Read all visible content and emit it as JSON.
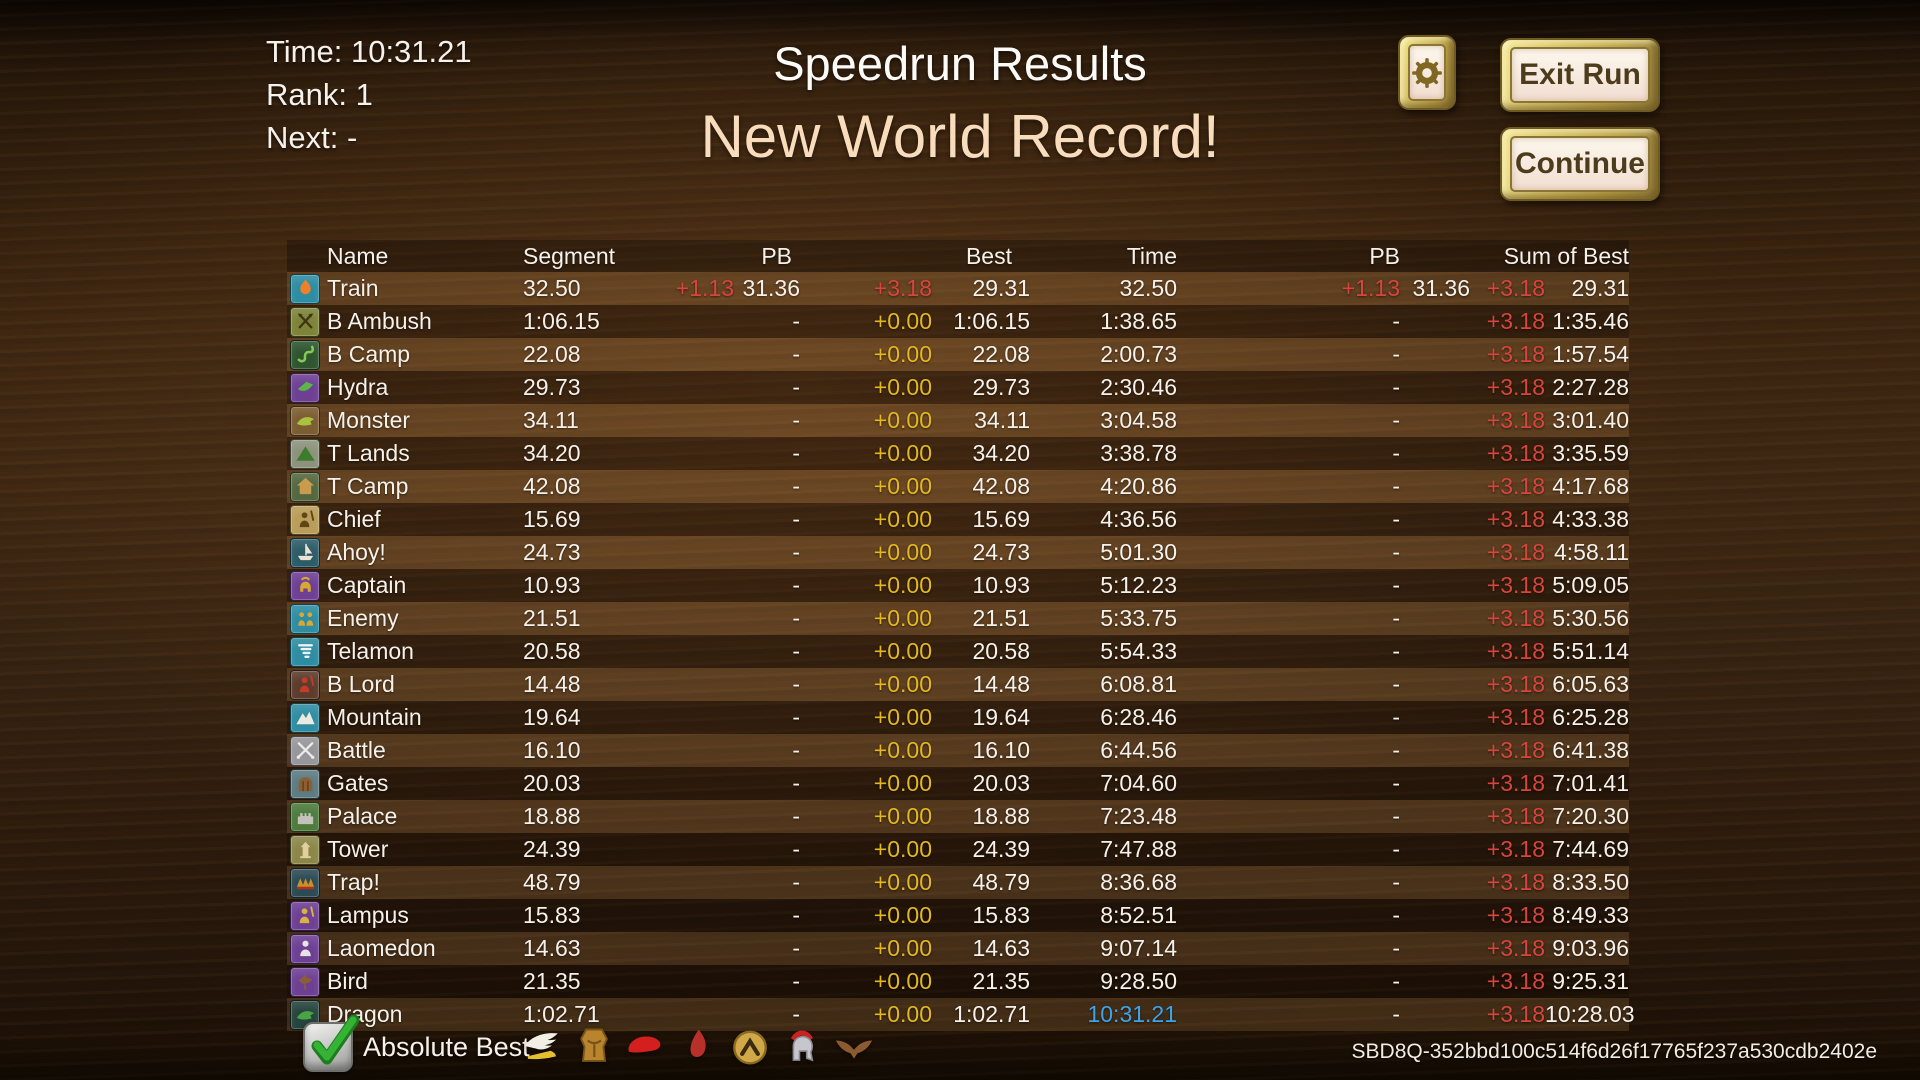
{
  "hud": {
    "time": "Time: 10:31.21",
    "rank": "Rank: 1",
    "next": "Next: -"
  },
  "header": {
    "title": "Speedrun Results",
    "subtitle": "New World Record!"
  },
  "buttons": {
    "settings_icon": "gear-icon",
    "exit_run": "Exit Run",
    "continue": "Continue"
  },
  "colors": {
    "delta_red": "#d8453c",
    "delta_gold": "#e3b81e",
    "time_blue": "#3da4ea",
    "record_cream": "#f8dcbc"
  },
  "table": {
    "columns": [
      "Name",
      "Segment",
      "PB",
      "Best",
      "Time",
      "PB",
      "Sum of Best"
    ],
    "rows": [
      {
        "icon": "train-icon",
        "glyph": "flame",
        "icon_bg": "#2e8da2",
        "glyph_color": "#ef7f28",
        "name": "Train",
        "segment": "32.50",
        "pb_delta": "+1.13",
        "pb_value": "31.36",
        "best_delta": "+3.18",
        "best_value": "29.31",
        "time": "32.50",
        "pb2_delta": "+1.13",
        "pb2_value": "31.36",
        "sob_delta": "+3.18",
        "sob_value": "29.31"
      },
      {
        "icon": "crossed-axes-icon",
        "glyph": "axes",
        "icon_bg": "#7d8438",
        "glyph_color": "#3f3414",
        "name": "B Ambush",
        "segment": "1:06.15",
        "pb_delta": "",
        "pb_value": "-",
        "best_delta": "+0.00",
        "best_value": "1:06.15",
        "time": "1:38.65",
        "pb2_delta": "-",
        "pb2_value": "",
        "sob_delta": "+3.18",
        "sob_value": "1:35.46"
      },
      {
        "icon": "snake-icon",
        "glyph": "snake",
        "icon_bg": "#2e5530",
        "glyph_color": "#86c956",
        "name": "B Camp",
        "segment": "22.08",
        "pb_delta": "",
        "pb_value": "-",
        "best_delta": "+0.00",
        "best_value": "22.08",
        "time": "2:00.73",
        "pb2_delta": "-",
        "pb2_value": "",
        "sob_delta": "+3.18",
        "sob_value": "1:57.54"
      },
      {
        "icon": "hydra-icon",
        "glyph": "serpent",
        "icon_bg": "#6e4094",
        "glyph_color": "#5cb44a",
        "name": "Hydra",
        "segment": "29.73",
        "pb_delta": "",
        "pb_value": "-",
        "best_delta": "+0.00",
        "best_value": "29.73",
        "time": "2:30.46",
        "pb2_delta": "-",
        "pb2_value": "",
        "sob_delta": "+3.18",
        "sob_value": "2:27.28"
      },
      {
        "icon": "monster-icon",
        "glyph": "dragon",
        "icon_bg": "#7c5c31",
        "glyph_color": "#aac23e",
        "name": "Monster",
        "segment": "34.11",
        "pb_delta": "",
        "pb_value": "-",
        "best_delta": "+0.00",
        "best_value": "34.11",
        "time": "3:04.58",
        "pb2_delta": "-",
        "pb2_value": "",
        "sob_delta": "+3.18",
        "sob_value": "3:01.40"
      },
      {
        "icon": "hill-icon",
        "glyph": "hill",
        "icon_bg": "#8d927c",
        "glyph_color": "#3c7c2c",
        "name": "T Lands",
        "segment": "34.20",
        "pb_delta": "",
        "pb_value": "-",
        "best_delta": "+0.00",
        "best_value": "34.20",
        "time": "3:38.78",
        "pb2_delta": "-",
        "pb2_value": "",
        "sob_delta": "+3.18",
        "sob_value": "3:35.59"
      },
      {
        "icon": "hut-icon",
        "glyph": "hut",
        "icon_bg": "#53683f",
        "glyph_color": "#c99b4e",
        "name": "T Camp",
        "segment": "42.08",
        "pb_delta": "",
        "pb_value": "-",
        "best_delta": "+0.00",
        "best_value": "42.08",
        "time": "4:20.86",
        "pb2_delta": "-",
        "pb2_value": "",
        "sob_delta": "+3.18",
        "sob_value": "4:17.68"
      },
      {
        "icon": "chief-icon",
        "glyph": "warrior",
        "icon_bg": "#b99d58",
        "glyph_color": "#5f4517",
        "name": "Chief",
        "segment": "15.69",
        "pb_delta": "",
        "pb_value": "-",
        "best_delta": "+0.00",
        "best_value": "15.69",
        "time": "4:36.56",
        "pb2_delta": "-",
        "pb2_value": "",
        "sob_delta": "+3.18",
        "sob_value": "4:33.38"
      },
      {
        "icon": "ship-icon",
        "glyph": "ship",
        "icon_bg": "#2c5c68",
        "glyph_color": "#ece4d2",
        "name": "Ahoy!",
        "segment": "24.73",
        "pb_delta": "",
        "pb_value": "-",
        "best_delta": "+0.00",
        "best_value": "24.73",
        "time": "5:01.30",
        "pb2_delta": "-",
        "pb2_value": "",
        "sob_delta": "+3.18",
        "sob_value": "4:58.11"
      },
      {
        "icon": "captain-helmet-icon",
        "glyph": "helmet",
        "icon_bg": "#6e4094",
        "glyph_color": "#d9a832",
        "name": "Captain",
        "segment": "10.93",
        "pb_delta": "",
        "pb_value": "-",
        "best_delta": "+0.00",
        "best_value": "10.93",
        "time": "5:12.23",
        "pb2_delta": "-",
        "pb2_value": "",
        "sob_delta": "+3.18",
        "sob_value": "5:09.05"
      },
      {
        "icon": "enemy-soldiers-icon",
        "glyph": "twopersons",
        "icon_bg": "#2e8da2",
        "glyph_color": "#d9a832",
        "name": "Enemy",
        "segment": "21.51",
        "pb_delta": "",
        "pb_value": "-",
        "best_delta": "+0.00",
        "best_value": "21.51",
        "time": "5:33.75",
        "pb2_delta": "-",
        "pb2_value": "",
        "sob_delta": "+3.18",
        "sob_value": "5:30.56"
      },
      {
        "icon": "whirlwind-icon",
        "glyph": "tornado",
        "icon_bg": "#2e8da2",
        "glyph_color": "#eef2f2",
        "name": "Telamon",
        "segment": "20.58",
        "pb_delta": "",
        "pb_value": "-",
        "best_delta": "+0.00",
        "best_value": "20.58",
        "time": "5:54.33",
        "pb2_delta": "-",
        "pb2_value": "",
        "sob_delta": "+3.18",
        "sob_value": "5:51.14"
      },
      {
        "icon": "boss-lord-icon",
        "glyph": "warrior",
        "icon_bg": "#5c3c2c",
        "glyph_color": "#c43b28",
        "name": "B Lord",
        "segment": "14.48",
        "pb_delta": "",
        "pb_value": "-",
        "best_delta": "+0.00",
        "best_value": "14.48",
        "time": "6:08.81",
        "pb2_delta": "-",
        "pb2_value": "",
        "sob_delta": "+3.18",
        "sob_value": "6:05.63"
      },
      {
        "icon": "mountain-icon",
        "glyph": "mountain",
        "icon_bg": "#2e8da2",
        "glyph_color": "#ece9e0",
        "name": "Mountain",
        "segment": "19.64",
        "pb_delta": "",
        "pb_value": "-",
        "best_delta": "+0.00",
        "best_value": "19.64",
        "time": "6:28.46",
        "pb2_delta": "-",
        "pb2_value": "",
        "sob_delta": "+3.18",
        "sob_value": "6:25.28"
      },
      {
        "icon": "crossed-swords-icon",
        "glyph": "swords",
        "icon_bg": "#97979b",
        "glyph_color": "#ecece8",
        "name": "Battle",
        "segment": "16.10",
        "pb_delta": "",
        "pb_value": "-",
        "best_delta": "+0.00",
        "best_value": "16.10",
        "time": "6:44.56",
        "pb2_delta": "-",
        "pb2_value": "",
        "sob_delta": "+3.18",
        "sob_value": "6:41.38"
      },
      {
        "icon": "gate-icon",
        "glyph": "gate",
        "icon_bg": "#5d7b82",
        "glyph_color": "#8c5e30",
        "name": "Gates",
        "segment": "20.03",
        "pb_delta": "",
        "pb_value": "-",
        "best_delta": "+0.00",
        "best_value": "20.03",
        "time": "7:04.60",
        "pb2_delta": "-",
        "pb2_value": "",
        "sob_delta": "+3.18",
        "sob_value": "7:01.41"
      },
      {
        "icon": "castle-icon",
        "glyph": "castle",
        "icon_bg": "#4c7b3c",
        "glyph_color": "#c2c2ba",
        "name": "Palace",
        "segment": "18.88",
        "pb_delta": "",
        "pb_value": "-",
        "best_delta": "+0.00",
        "best_value": "18.88",
        "time": "7:23.48",
        "pb2_delta": "-",
        "pb2_value": "",
        "sob_delta": "+3.18",
        "sob_value": "7:20.30"
      },
      {
        "icon": "tower-icon",
        "glyph": "tower",
        "icon_bg": "#8c8748",
        "glyph_color": "#e0d0a0",
        "name": "Tower",
        "segment": "24.39",
        "pb_delta": "",
        "pb_value": "-",
        "best_delta": "+0.00",
        "best_value": "24.39",
        "time": "7:47.88",
        "pb2_delta": "-",
        "pb2_value": "",
        "sob_delta": "+3.18",
        "sob_value": "7:44.69"
      },
      {
        "icon": "trap-icon",
        "glyph": "trap",
        "icon_bg": "#2c4a54",
        "glyph_color": "#cc8f2a",
        "name": "Trap!",
        "segment": "48.79",
        "pb_delta": "",
        "pb_value": "-",
        "best_delta": "+0.00",
        "best_value": "48.79",
        "time": "8:36.68",
        "pb2_delta": "-",
        "pb2_value": "",
        "sob_delta": "+3.18",
        "sob_value": "8:33.50"
      },
      {
        "icon": "warrior-icon",
        "glyph": "warrior",
        "icon_bg": "#6e4094",
        "glyph_color": "#d9b243",
        "name": "Lampus",
        "segment": "15.83",
        "pb_delta": "",
        "pb_value": "-",
        "best_delta": "+0.00",
        "best_value": "15.83",
        "time": "8:52.51",
        "pb2_delta": "-",
        "pb2_value": "",
        "sob_delta": "+3.18",
        "sob_value": "8:49.33"
      },
      {
        "icon": "king-icon",
        "glyph": "person",
        "icon_bg": "#6e4094",
        "glyph_color": "#e9e4e4",
        "name": "Laomedon",
        "segment": "14.63",
        "pb_delta": "",
        "pb_value": "-",
        "best_delta": "+0.00",
        "best_value": "14.63",
        "time": "9:07.14",
        "pb2_delta": "-",
        "pb2_value": "",
        "sob_delta": "+3.18",
        "sob_value": "9:03.96"
      },
      {
        "icon": "bird-icon",
        "glyph": "bird",
        "icon_bg": "#6e4094",
        "glyph_color": "#8c5e38",
        "name": "Bird",
        "segment": "21.35",
        "pb_delta": "",
        "pb_value": "-",
        "best_delta": "+0.00",
        "best_value": "21.35",
        "time": "9:28.50",
        "pb2_delta": "-",
        "pb2_value": "",
        "sob_delta": "+3.18",
        "sob_value": "9:25.31"
      },
      {
        "icon": "dragon-icon",
        "glyph": "dragon",
        "icon_bg": "#26443e",
        "glyph_color": "#4aa444",
        "name": "Dragon",
        "segment": "1:02.71",
        "pb_delta": "",
        "pb_value": "-",
        "best_delta": "+0.00",
        "best_value": "1:02.71",
        "time": "10:31.21",
        "time_highlight": true,
        "pb2_delta": "-",
        "pb2_value": "",
        "sob_delta": "+3.18",
        "sob_value": "10:28.03"
      }
    ]
  },
  "footer": {
    "checkbox_label": "Absolute Best",
    "checked": true,
    "check_icon": "green-checkmark-icon",
    "icons": [
      "winged-sandal-icon",
      "cuirass-icon",
      "red-cape-icon",
      "red-flame-icon",
      "spartan-shield-icon",
      "spartan-helmet-icon",
      "wings-icon"
    ],
    "run_id": "SBD8Q-352bbd100c514f6d26f17765f237a530cdb2402e"
  }
}
